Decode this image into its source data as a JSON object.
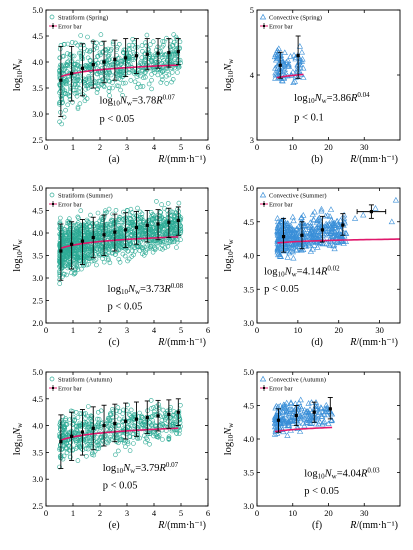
{
  "chart_data": [
    {
      "id": "a",
      "type": "scatter",
      "panel_label": "(a)",
      "legend": [
        "Stratiform (Spring)",
        "Error bar"
      ],
      "marker_color": "#2eab96",
      "marker": "circle",
      "fit_color": "#e0186c",
      "fit_label_base": "log",
      "fit_label_sub": "10",
      "fit_label_var": "N",
      "fit_label_varsub": "w",
      "fit_label_rhs": "=3.78",
      "fit_label_R": "R",
      "fit_label_exp": "0.07",
      "p_text": "p < 0.05",
      "ylabel_base": "log",
      "ylabel_sub": "10",
      "ylabel_var": "N",
      "ylabel_varsub": "w",
      "xlabel": "R/(mm·h⁻¹)",
      "xlim": [
        0,
        6
      ],
      "ylim": [
        2.5,
        5.0
      ],
      "xticks": [
        "0",
        "1",
        "2",
        "3",
        "4",
        "5",
        "6"
      ],
      "xtick_values": [
        0,
        1,
        2,
        3,
        4,
        5,
        6
      ],
      "yticks": [
        "2.5",
        "3.0",
        "3.5",
        "4.0",
        "4.5",
        "5.0"
      ],
      "ytick_values": [
        2.5,
        3.0,
        3.5,
        4.0,
        4.5,
        5.0
      ],
      "fit": {
        "a": 3.78,
        "b": 0.07,
        "x0": 0.55,
        "x1": 4.9
      },
      "cloud": {
        "xmin": 0.5,
        "xmax": 5.0,
        "ylow": [
          2.5,
          3.5
        ],
        "yhigh": [
          4.6,
          4.7
        ],
        "n": 600
      },
      "error_bars": [
        {
          "x": 0.55,
          "y": 3.65,
          "lo": 2.95,
          "hi": 4.3
        },
        {
          "x": 0.95,
          "y": 3.78,
          "lo": 3.25,
          "hi": 4.3
        },
        {
          "x": 1.35,
          "y": 3.88,
          "lo": 3.35,
          "hi": 4.35
        },
        {
          "x": 1.75,
          "y": 3.95,
          "lo": 3.5,
          "hi": 4.4
        },
        {
          "x": 2.15,
          "y": 4.0,
          "lo": 3.6,
          "hi": 4.4
        },
        {
          "x": 2.55,
          "y": 4.05,
          "lo": 3.65,
          "hi": 4.42
        },
        {
          "x": 2.95,
          "y": 4.08,
          "lo": 3.72,
          "hi": 4.45
        },
        {
          "x": 3.35,
          "y": 4.12,
          "lo": 3.78,
          "hi": 4.45
        },
        {
          "x": 3.75,
          "y": 4.15,
          "lo": 3.85,
          "hi": 4.45
        },
        {
          "x": 4.15,
          "y": 4.17,
          "lo": 3.88,
          "hi": 4.45
        },
        {
          "x": 4.55,
          "y": 4.18,
          "lo": 3.9,
          "hi": 4.45
        },
        {
          "x": 4.9,
          "y": 4.2,
          "lo": 3.95,
          "hi": 4.45
        }
      ]
    },
    {
      "id": "b",
      "type": "scatter",
      "panel_label": "(b)",
      "legend": [
        "Convective (Spring)",
        "Error bar"
      ],
      "marker_color": "#3a8fd8",
      "marker": "triangle",
      "fit_color": "#e0186c",
      "fit_label_base": "log",
      "fit_label_sub": "10",
      "fit_label_var": "N",
      "fit_label_varsub": "w",
      "fit_label_rhs": "=3.86",
      "fit_label_R": "R",
      "fit_label_exp": "0.04",
      "p_text": "p < 0.1",
      "ylabel_base": "log",
      "ylabel_sub": "10",
      "ylabel_var": "N",
      "ylabel_varsub": "w",
      "xlabel": "R/(mm·h⁻¹)",
      "xlim": [
        0,
        40
      ],
      "ylim": [
        3.0,
        5.0
      ],
      "xticks": [
        "0",
        "10",
        "20",
        "30"
      ],
      "xtick_values": [
        0,
        10,
        20,
        30
      ],
      "yticks": [
        "3",
        "4",
        "5"
      ],
      "ytick_values": [
        3,
        4,
        5
      ],
      "fit": {
        "a": 3.86,
        "b": 0.04,
        "x0": 5.5,
        "x1": 13
      },
      "cloud": {
        "xmin": 5,
        "xmax": 13,
        "ylow": [
          3.7,
          3.8
        ],
        "yhigh": [
          4.5,
          4.6
        ],
        "n": 90
      },
      "error_bars": [
        {
          "x": 6.5,
          "y": 4.15,
          "lo": 3.95,
          "hi": 4.35
        },
        {
          "x": 11.5,
          "y": 4.3,
          "lo": 3.95,
          "hi": 4.6
        }
      ]
    },
    {
      "id": "c",
      "type": "scatter",
      "panel_label": "(c)",
      "legend": [
        "Stratiform (Summer)",
        "Error bar"
      ],
      "marker_color": "#2eab96",
      "marker": "circle",
      "fit_color": "#e0186c",
      "fit_label_base": "log",
      "fit_label_sub": "10",
      "fit_label_var": "N",
      "fit_label_varsub": "w",
      "fit_label_rhs": "=3.73",
      "fit_label_R": "R",
      "fit_label_exp": "0.08",
      "p_text": "p < 0.05",
      "ylabel_base": "log",
      "ylabel_sub": "10",
      "ylabel_var": "N",
      "ylabel_varsub": "w",
      "xlabel": "R/(mm·h⁻¹)",
      "xlim": [
        0,
        6
      ],
      "ylim": [
        2.0,
        5.0
      ],
      "xticks": [
        "0",
        "1",
        "2",
        "3",
        "4",
        "5",
        "6"
      ],
      "xtick_values": [
        0,
        1,
        2,
        3,
        4,
        5,
        6
      ],
      "yticks": [
        "2.0",
        "2.5",
        "3.0",
        "3.5",
        "4.0",
        "4.5",
        "5.0"
      ],
      "ytick_values": [
        2.0,
        2.5,
        3.0,
        3.5,
        4.0,
        4.5,
        5.0
      ],
      "fit": {
        "a": 3.73,
        "b": 0.08,
        "x0": 0.55,
        "x1": 4.9
      },
      "cloud": {
        "xmin": 0.5,
        "xmax": 5.0,
        "ylow": [
          2.6,
          3.5
        ],
        "yhigh": [
          4.5,
          4.8
        ],
        "n": 1300
      },
      "error_bars": [
        {
          "x": 0.55,
          "y": 3.6,
          "lo": 2.95,
          "hi": 4.2
        },
        {
          "x": 0.95,
          "y": 3.75,
          "lo": 3.2,
          "hi": 4.25
        },
        {
          "x": 1.35,
          "y": 3.82,
          "lo": 3.3,
          "hi": 4.3
        },
        {
          "x": 1.75,
          "y": 3.9,
          "lo": 3.45,
          "hi": 4.35
        },
        {
          "x": 2.15,
          "y": 3.96,
          "lo": 3.5,
          "hi": 4.4
        },
        {
          "x": 2.55,
          "y": 4.02,
          "lo": 3.6,
          "hi": 4.42
        },
        {
          "x": 2.95,
          "y": 4.07,
          "lo": 3.68,
          "hi": 4.45
        },
        {
          "x": 3.35,
          "y": 4.12,
          "lo": 3.75,
          "hi": 4.48
        },
        {
          "x": 3.75,
          "y": 4.17,
          "lo": 3.8,
          "hi": 4.5
        },
        {
          "x": 4.15,
          "y": 4.2,
          "lo": 3.85,
          "hi": 4.52
        },
        {
          "x": 4.55,
          "y": 4.24,
          "lo": 3.9,
          "hi": 4.55
        },
        {
          "x": 4.9,
          "y": 4.28,
          "lo": 3.95,
          "hi": 4.58
        }
      ]
    },
    {
      "id": "d",
      "type": "scatter",
      "panel_label": "(d)",
      "legend": [
        "Convective (Summer)",
        "Error bar"
      ],
      "marker_color": "#3a8fd8",
      "marker": "triangle",
      "fit_color": "#e0186c",
      "fit_label_base": "log",
      "fit_label_sub": "10",
      "fit_label_var": "N",
      "fit_label_varsub": "w",
      "fit_label_rhs": "=4.14",
      "fit_label_R": "R",
      "fit_label_exp": "0.02",
      "p_text": "p < 0.05",
      "ylabel_base": "log",
      "ylabel_sub": "10",
      "ylabel_var": "N",
      "ylabel_varsub": "w",
      "xlabel": "R/(mm·h⁻¹)",
      "xlim": [
        0,
        35
      ],
      "ylim": [
        3.0,
        5.0
      ],
      "xticks": [
        "0",
        "10",
        "20",
        "30"
      ],
      "xtick_values": [
        0,
        10,
        20,
        30
      ],
      "yticks": [
        "3.0",
        "3.5",
        "4.0",
        "4.5",
        "5.0"
      ],
      "ytick_values": [
        3.0,
        3.5,
        4.0,
        4.5,
        5.0
      ],
      "fit": {
        "a": 4.14,
        "b": 0.02,
        "x0": 5,
        "x1": 35
      },
      "cloud": {
        "xmin": 5,
        "xmax": 22,
        "ylow": [
          3.8,
          4.0
        ],
        "yhigh": [
          4.7,
          4.75
        ],
        "n": 420
      },
      "extra_points": [
        [
          24,
          4.55
        ],
        [
          26,
          4.6
        ],
        [
          29,
          4.7
        ],
        [
          34,
          4.82
        ],
        [
          33,
          4.5
        ]
      ],
      "error_bars": [
        {
          "x": 6.5,
          "y": 4.28,
          "lo": 4.05,
          "hi": 4.55
        },
        {
          "x": 11,
          "y": 4.3,
          "lo": 4.1,
          "hi": 4.5
        },
        {
          "x": 16,
          "y": 4.38,
          "lo": 4.2,
          "hi": 4.58
        },
        {
          "x": 21,
          "y": 4.45,
          "lo": 4.3,
          "hi": 4.62
        },
        {
          "x": 28,
          "y": 4.65,
          "lo": 4.55,
          "hi": 4.75,
          "xerr": 3.5
        }
      ]
    },
    {
      "id": "e",
      "type": "scatter",
      "panel_label": "(e)",
      "legend": [
        "Stratiform (Autumn)",
        "Error bar"
      ],
      "marker_color": "#2eab96",
      "marker": "circle",
      "fit_color": "#e0186c",
      "fit_label_base": "log",
      "fit_label_sub": "10",
      "fit_label_var": "N",
      "fit_label_varsub": "w",
      "fit_label_rhs": "=3.79",
      "fit_label_R": "R",
      "fit_label_exp": "0.07",
      "p_text": "p < 0.05",
      "ylabel_base": "log",
      "ylabel_sub": "10",
      "ylabel_var": "N",
      "ylabel_varsub": "w",
      "xlabel": "R/(mm·h⁻¹)",
      "xlim": [
        0,
        6
      ],
      "ylim": [
        2.5,
        5.0
      ],
      "xticks": [
        "0",
        "1",
        "2",
        "3",
        "4",
        "5",
        "6"
      ],
      "xtick_values": [
        0,
        1,
        2,
        3,
        4,
        5,
        6
      ],
      "yticks": [
        "2.5",
        "3.0",
        "3.5",
        "4.0",
        "4.5",
        "5.0"
      ],
      "ytick_values": [
        2.5,
        3.0,
        3.5,
        4.0,
        4.5,
        5.0
      ],
      "fit": {
        "a": 3.79,
        "b": 0.07,
        "x0": 0.55,
        "x1": 4.9
      },
      "cloud": {
        "xmin": 0.5,
        "xmax": 5.0,
        "ylow": [
          3.0,
          3.6
        ],
        "yhigh": [
          4.4,
          4.6
        ],
        "n": 550
      },
      "error_bars": [
        {
          "x": 0.55,
          "y": 3.7,
          "lo": 3.2,
          "hi": 4.2
        },
        {
          "x": 0.95,
          "y": 3.8,
          "lo": 3.35,
          "hi": 4.25
        },
        {
          "x": 1.35,
          "y": 3.88,
          "lo": 3.45,
          "hi": 4.3
        },
        {
          "x": 1.75,
          "y": 3.95,
          "lo": 3.55,
          "hi": 4.35
        },
        {
          "x": 2.15,
          "y": 4.0,
          "lo": 3.62,
          "hi": 4.38
        },
        {
          "x": 2.55,
          "y": 4.04,
          "lo": 3.7,
          "hi": 4.4
        },
        {
          "x": 2.95,
          "y": 4.08,
          "lo": 3.75,
          "hi": 4.42
        },
        {
          "x": 3.35,
          "y": 4.12,
          "lo": 3.8,
          "hi": 4.44
        },
        {
          "x": 3.75,
          "y": 4.15,
          "lo": 3.85,
          "hi": 4.46
        },
        {
          "x": 4.15,
          "y": 4.18,
          "lo": 3.9,
          "hi": 4.47
        },
        {
          "x": 4.55,
          "y": 4.21,
          "lo": 3.95,
          "hi": 4.48
        },
        {
          "x": 4.9,
          "y": 4.25,
          "lo": 4.0,
          "hi": 4.5
        }
      ]
    },
    {
      "id": "f",
      "type": "scatter",
      "panel_label": "(f)",
      "legend": [
        "Convective (Autumn)",
        "Error bar"
      ],
      "marker_color": "#3a8fd8",
      "marker": "triangle",
      "fit_color": "#e0186c",
      "fit_label_base": "log",
      "fit_label_sub": "10",
      "fit_label_var": "N",
      "fit_label_varsub": "w",
      "fit_label_rhs": "=4.04",
      "fit_label_R": "R",
      "fit_label_exp": "0.03",
      "p_text": "p < 0.05",
      "ylabel_base": "log",
      "ylabel_sub": "10",
      "ylabel_var": "N",
      "ylabel_varsub": "w",
      "xlabel": "R/(mm·h⁻¹)",
      "xlim": [
        0,
        40
      ],
      "ylim": [
        3.0,
        5.0
      ],
      "xticks": [
        "0",
        "10",
        "20",
        "30"
      ],
      "xtick_values": [
        0,
        10,
        20,
        30
      ],
      "yticks": [
        "3.0",
        "3.5",
        "4.0",
        "4.5",
        "5.0"
      ],
      "ytick_values": [
        3.0,
        3.5,
        4.0,
        4.5,
        5.0
      ],
      "fit": {
        "a": 4.04,
        "b": 0.03,
        "x0": 5,
        "x1": 21
      },
      "cloud": {
        "xmin": 5,
        "xmax": 21,
        "ylow": [
          3.95,
          4.05
        ],
        "yhigh": [
          4.6,
          4.7
        ],
        "n": 200
      },
      "error_bars": [
        {
          "x": 6,
          "y": 4.28,
          "lo": 4.1,
          "hi": 4.45
        },
        {
          "x": 11,
          "y": 4.35,
          "lo": 4.2,
          "hi": 4.5
        },
        {
          "x": 16,
          "y": 4.4,
          "lo": 4.25,
          "hi": 4.55
        },
        {
          "x": 20.5,
          "y": 4.45,
          "lo": 4.3,
          "hi": 4.62
        }
      ]
    }
  ]
}
